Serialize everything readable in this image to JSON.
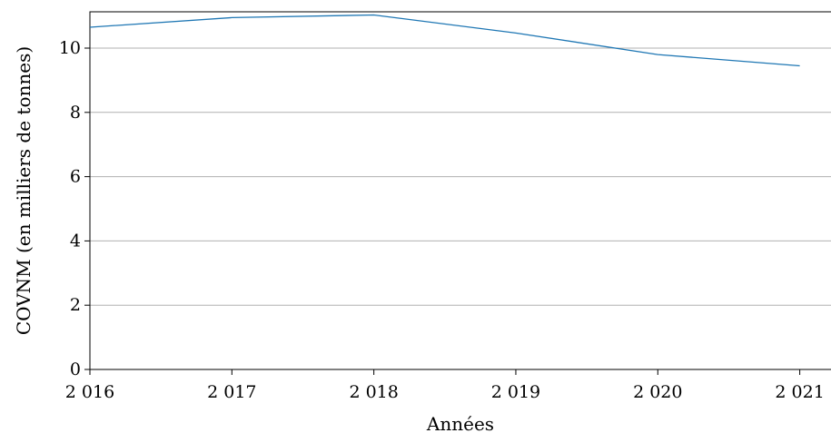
{
  "chart_data": {
    "type": "line",
    "x": [
      2016,
      2017,
      2018,
      2019,
      2020,
      2021
    ],
    "x_tick_labels": [
      "2 016",
      "2 017",
      "2 018",
      "2 019",
      "2 020",
      "2 021"
    ],
    "series": [
      {
        "values": [
          10.65,
          10.95,
          11.03,
          10.47,
          9.8,
          9.45
        ]
      }
    ],
    "xlabel": "Années",
    "ylabel": "COVNM (en milliers de tonnes)",
    "y_ticks": [
      0,
      2,
      4,
      6,
      8,
      10
    ],
    "y_tick_labels": [
      "0",
      "2",
      "4",
      "6",
      "8",
      "10"
    ],
    "xlim": [
      2016,
      2021.22
    ],
    "ylim": [
      0,
      11.13
    ],
    "grid": "horizontal",
    "line_color": "#1f77b4"
  }
}
